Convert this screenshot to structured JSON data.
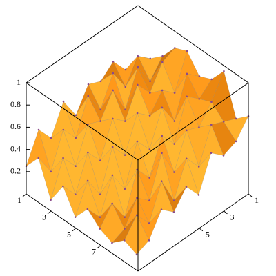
{
  "chart_data": {
    "type": "surface",
    "x": [
      1,
      2,
      3,
      4,
      5,
      6,
      7,
      8,
      9,
      10
    ],
    "y": [
      1,
      2,
      3,
      4,
      5,
      6,
      7,
      8,
      9,
      10
    ],
    "z": [
      [
        0.45,
        0.6,
        0.7,
        0.85,
        0.9,
        0.75,
        0.8,
        0.95,
        0.6,
        0.7
      ],
      [
        0.5,
        0.7,
        0.55,
        0.8,
        0.6,
        0.85,
        0.7,
        0.75,
        0.65,
        0.55
      ],
      [
        0.65,
        0.5,
        0.75,
        0.6,
        0.7,
        0.5,
        0.8,
        0.6,
        0.7,
        0.5
      ],
      [
        0.55,
        0.7,
        0.45,
        0.75,
        0.55,
        0.7,
        0.45,
        0.65,
        0.4,
        0.6
      ],
      [
        0.6,
        0.45,
        0.7,
        0.5,
        0.65,
        0.4,
        0.6,
        0.35,
        0.55,
        0.3
      ],
      [
        0.4,
        0.65,
        0.5,
        0.6,
        0.35,
        0.55,
        0.3,
        0.6,
        0.25,
        0.45
      ],
      [
        0.6,
        0.35,
        0.55,
        0.3,
        0.5,
        0.2,
        0.45,
        0.25,
        0.5,
        0.3
      ],
      [
        0.35,
        0.5,
        0.25,
        0.45,
        0.15,
        0.4,
        0.1,
        0.35,
        0.2,
        0.4
      ],
      [
        0.5,
        0.2,
        0.4,
        0.15,
        0.35,
        0.1,
        0.3,
        0.15,
        0.35,
        0.2
      ],
      [
        0.25,
        0.4,
        0.1,
        0.3,
        0.1,
        0.25,
        0.15,
        0.1,
        0.2,
        0.15
      ]
    ],
    "xlim": [
      1,
      10
    ],
    "ylim": [
      1,
      10
    ],
    "zlim": [
      0,
      1
    ],
    "xticks": [
      1,
      3,
      5,
      7
    ],
    "yticks": [
      1,
      3,
      5
    ],
    "zticks": [
      0.2,
      0.4,
      0.6,
      0.8,
      1
    ],
    "color": "#f08a10"
  }
}
